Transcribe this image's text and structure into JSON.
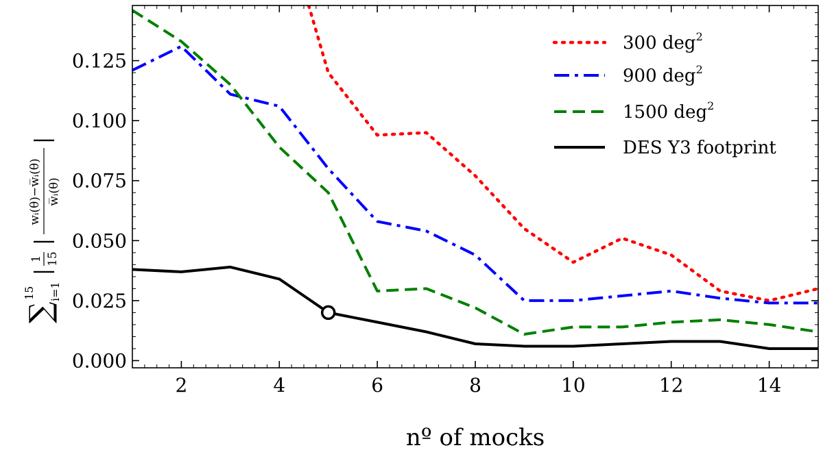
{
  "chart_data": {
    "type": "line",
    "xlabel": "nº of mocks",
    "ylabel": "∑_{i=1}^{15} | 1/15 (w_i(θ) − w̅_i(θ)) / w̅_i(θ) |",
    "ylabel_parts": {
      "sum": "∑",
      "sum_sub": "i=1",
      "sum_sup": "15",
      "frac_num": "1",
      "frac_den": "15",
      "w_num": "wᵢ(θ)−w̅ᵢ(θ)",
      "w_den": "w̅ᵢ(θ)",
      "bar": "|"
    },
    "xlim": [
      1,
      15
    ],
    "ylim": [
      -0.003,
      0.148
    ],
    "xticks": [
      2,
      4,
      6,
      8,
      10,
      12,
      14
    ],
    "yticks": [
      0.0,
      0.025,
      0.05,
      0.075,
      0.1,
      0.125
    ],
    "ytick_labels": [
      "0.000",
      "0.025",
      "0.050",
      "0.075",
      "0.100",
      "0.125"
    ],
    "legend_position": "top-right",
    "series": [
      {
        "name": "300 deg",
        "sup": "2",
        "color": "#ff0000",
        "style": "dotted",
        "x": [
          1,
          2,
          3,
          4,
          4.6,
          5,
          6,
          7,
          8,
          9,
          10,
          11,
          12,
          13,
          14,
          15
        ],
        "values": [
          null,
          null,
          null,
          null,
          0.148,
          0.12,
          0.094,
          0.095,
          0.077,
          0.055,
          0.041,
          0.051,
          0.044,
          0.029,
          0.025,
          0.03
        ]
      },
      {
        "name": "900 deg",
        "sup": "2",
        "color": "#0000ff",
        "style": "dashdot",
        "x": [
          1,
          2,
          3,
          4,
          5,
          6,
          7,
          8,
          9,
          10,
          11,
          12,
          13,
          14,
          15
        ],
        "values": [
          0.121,
          0.131,
          0.111,
          0.106,
          0.08,
          0.058,
          0.054,
          0.044,
          0.025,
          0.025,
          0.027,
          0.029,
          0.026,
          0.024,
          0.024
        ]
      },
      {
        "name": "1500 deg",
        "sup": "2",
        "color": "#008000",
        "style": "dashed",
        "x": [
          1,
          2,
          3,
          4,
          5,
          6,
          7,
          8,
          9,
          10,
          11,
          12,
          13,
          14,
          15
        ],
        "values": [
          0.146,
          0.133,
          0.115,
          0.089,
          0.07,
          0.029,
          0.03,
          0.022,
          0.011,
          0.014,
          0.014,
          0.016,
          0.017,
          0.015,
          0.012
        ]
      },
      {
        "name": "DES Y3 footprint",
        "sup": "",
        "color": "#000000",
        "style": "solid",
        "x": [
          1,
          2,
          3,
          4,
          5,
          6,
          7,
          8,
          9,
          10,
          11,
          12,
          13,
          14,
          15
        ],
        "values": [
          0.038,
          0.037,
          0.039,
          0.034,
          0.02,
          0.016,
          0.012,
          0.007,
          0.006,
          0.006,
          0.007,
          0.008,
          0.008,
          0.005,
          0.005
        ]
      }
    ],
    "marker": {
      "x": 5,
      "y": 0.02
    }
  }
}
